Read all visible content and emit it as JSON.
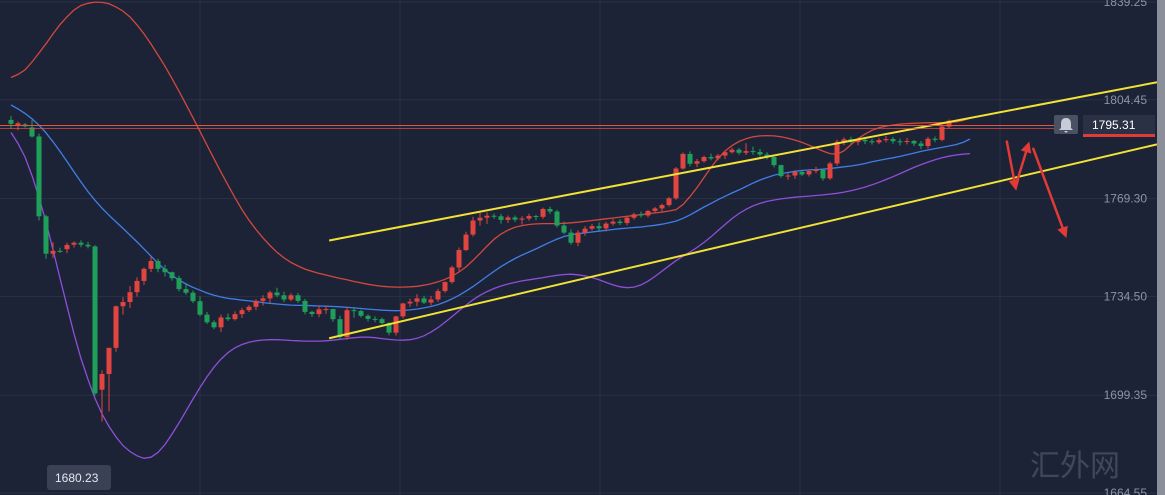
{
  "chart_data": {
    "type": "candlestick",
    "y_axis": {
      "ticks": [
        1839.25,
        1804.45,
        1769.3,
        1734.5,
        1699.35,
        1664.55
      ],
      "tick_labels": [
        "1839.25",
        "1804.45",
        "1769.30",
        "1734.50",
        "1699.35",
        "1664.55"
      ],
      "ylim": [
        1664.55,
        1839.25
      ],
      "position": "right"
    },
    "current_price": {
      "label": "1795.31",
      "value": 1795.31
    },
    "low_marker": {
      "label": "1680.23",
      "value": 1680.23
    },
    "grid": true,
    "colors": {
      "background": "#1d2336",
      "up": "#e0453f",
      "down": "#1fa05a",
      "middle_band": "#3f7ee8",
      "upper_band": "#d1483e",
      "lower_band": "#8d4fd8",
      "channel": "#f2e235",
      "price_line": "#e8533f",
      "arrows": "#e23a36"
    },
    "candles_ohlc": [
      [
        1797.3,
        1798.7,
        1794.2,
        1795.9
      ],
      [
        1795.5,
        1796.7,
        1793.6,
        1796.1
      ],
      [
        1795.7,
        1796.2,
        1794.6,
        1795.0
      ],
      [
        1794.6,
        1797.2,
        1791.0,
        1791.4
      ],
      [
        1791.4,
        1792.4,
        1761.5,
        1763.0
      ],
      [
        1763.0,
        1763.5,
        1747.9,
        1749.7
      ],
      [
        1749.7,
        1753.8,
        1748.1,
        1750.7
      ],
      [
        1750.7,
        1751.8,
        1750.0,
        1750.5
      ],
      [
        1751.3,
        1753.6,
        1749.9,
        1752.8
      ],
      [
        1752.9,
        1754.1,
        1751.9,
        1753.6
      ],
      [
        1753.6,
        1754.5,
        1752.0,
        1752.9
      ],
      [
        1752.9,
        1753.9,
        1751.6,
        1752.3
      ],
      [
        1752.3,
        1752.7,
        1699.3,
        1700.0
      ],
      [
        1701.3,
        1708.2,
        1690.0,
        1706.9
      ],
      [
        1706.9,
        1716.2,
        1693.6,
        1716.2
      ],
      [
        1716.2,
        1731.2,
        1714.8,
        1731.0
      ],
      [
        1731.0,
        1734.2,
        1728.0,
        1732.5
      ],
      [
        1732.5,
        1738.2,
        1730.4,
        1736.0
      ],
      [
        1736.0,
        1741.3,
        1734.4,
        1740.0
      ],
      [
        1740.0,
        1744.8,
        1738.6,
        1744.3
      ],
      [
        1744.3,
        1748.5,
        1743.2,
        1747.1
      ],
      [
        1747.1,
        1747.9,
        1743.1,
        1744.3
      ],
      [
        1744.3,
        1745.7,
        1741.6,
        1743.1
      ],
      [
        1743.1,
        1743.3,
        1740.1,
        1741.0
      ],
      [
        1741.0,
        1741.9,
        1736.3,
        1737.1
      ],
      [
        1737.1,
        1739.3,
        1735.1,
        1735.8
      ],
      [
        1735.8,
        1736.6,
        1732.1,
        1732.8
      ],
      [
        1732.8,
        1734.5,
        1727.4,
        1728.0
      ],
      [
        1728.0,
        1729.0,
        1724.7,
        1725.3
      ],
      [
        1725.3,
        1726.0,
        1722.8,
        1723.5
      ],
      [
        1723.5,
        1728.0,
        1721.8,
        1727.0
      ],
      [
        1727.0,
        1728.4,
        1725.8,
        1726.4
      ],
      [
        1726.4,
        1729.2,
        1725.9,
        1728.2
      ],
      [
        1728.2,
        1730.4,
        1726.8,
        1729.6
      ],
      [
        1729.6,
        1731.4,
        1728.9,
        1730.8
      ],
      [
        1730.8,
        1733.5,
        1729.6,
        1732.9
      ],
      [
        1732.9,
        1734.9,
        1731.2,
        1733.8
      ],
      [
        1733.8,
        1736.5,
        1732.1,
        1735.9
      ],
      [
        1735.9,
        1737.6,
        1734.2,
        1734.9
      ],
      [
        1734.9,
        1736.2,
        1732.4,
        1733.4
      ],
      [
        1733.4,
        1735.6,
        1732.8,
        1734.9
      ],
      [
        1734.9,
        1735.7,
        1732.2,
        1732.9
      ],
      [
        1732.9,
        1733.6,
        1728.1,
        1729.0
      ],
      [
        1729.0,
        1729.4,
        1727.2,
        1728.2
      ],
      [
        1728.2,
        1731.3,
        1727.1,
        1729.9
      ],
      [
        1729.9,
        1731.2,
        1728.3,
        1730.0
      ],
      [
        1730.0,
        1730.1,
        1725.5,
        1726.4
      ],
      [
        1726.4,
        1727.6,
        1719.4,
        1720.0
      ],
      [
        1720.0,
        1730.9,
        1719.1,
        1729.6
      ],
      [
        1729.6,
        1730.7,
        1726.9,
        1729.3
      ],
      [
        1729.3,
        1729.8,
        1727.0,
        1727.6
      ],
      [
        1727.6,
        1728.1,
        1725.6,
        1726.5
      ],
      [
        1726.5,
        1727.4,
        1725.3,
        1726.4
      ],
      [
        1726.4,
        1727.0,
        1724.4,
        1725.0
      ],
      [
        1725.0,
        1725.3,
        1720.7,
        1721.6
      ],
      [
        1721.6,
        1727.6,
        1720.6,
        1727.4
      ],
      [
        1727.4,
        1732.2,
        1726.7,
        1732.0
      ],
      [
        1732.0,
        1733.7,
        1730.8,
        1732.6
      ],
      [
        1732.6,
        1735.3,
        1731.0,
        1733.8
      ],
      [
        1733.8,
        1734.7,
        1731.8,
        1732.3
      ],
      [
        1732.3,
        1734.7,
        1731.3,
        1733.4
      ],
      [
        1733.4,
        1737.2,
        1732.5,
        1736.4
      ],
      [
        1736.4,
        1739.9,
        1735.8,
        1739.6
      ],
      [
        1739.6,
        1745.4,
        1739.0,
        1744.8
      ],
      [
        1744.8,
        1751.9,
        1743.5,
        1751.0
      ],
      [
        1751.0,
        1757.5,
        1750.6,
        1756.5
      ],
      [
        1756.5,
        1762.8,
        1755.8,
        1761.5
      ],
      [
        1761.5,
        1764.5,
        1759.7,
        1762.5
      ],
      [
        1762.5,
        1764.4,
        1760.3,
        1763.2
      ],
      [
        1763.2,
        1764.0,
        1762.1,
        1763.0
      ],
      [
        1763.0,
        1763.9,
        1760.4,
        1761.7
      ],
      [
        1761.7,
        1763.3,
        1760.6,
        1762.6
      ],
      [
        1762.6,
        1763.3,
        1761.0,
        1761.8
      ],
      [
        1761.8,
        1763.0,
        1760.1,
        1762.2
      ],
      [
        1762.2,
        1763.9,
        1761.4,
        1763.1
      ],
      [
        1763.1,
        1763.5,
        1761.6,
        1762.8
      ],
      [
        1762.8,
        1766.1,
        1762.1,
        1765.6
      ],
      [
        1765.6,
        1766.4,
        1763.8,
        1764.7
      ],
      [
        1764.7,
        1765.3,
        1759.0,
        1759.7
      ],
      [
        1759.7,
        1761.1,
        1756.6,
        1757.2
      ],
      [
        1757.2,
        1758.4,
        1752.9,
        1753.6
      ],
      [
        1753.6,
        1758.1,
        1752.4,
        1757.2
      ],
      [
        1757.2,
        1759.5,
        1756.1,
        1758.6
      ],
      [
        1758.6,
        1760.3,
        1757.9,
        1759.5
      ],
      [
        1759.5,
        1760.8,
        1757.9,
        1758.7
      ],
      [
        1758.7,
        1761.0,
        1757.6,
        1760.4
      ],
      [
        1760.4,
        1762.1,
        1759.7,
        1761.1
      ],
      [
        1761.1,
        1762.0,
        1759.9,
        1760.6
      ],
      [
        1760.6,
        1762.9,
        1759.8,
        1762.5
      ],
      [
        1762.5,
        1764.3,
        1761.8,
        1763.7
      ],
      [
        1763.7,
        1764.7,
        1762.5,
        1763.3
      ],
      [
        1763.3,
        1765.3,
        1762.6,
        1764.9
      ],
      [
        1764.9,
        1766.3,
        1764.0,
        1765.8
      ],
      [
        1765.8,
        1767.5,
        1764.6,
        1767.0
      ],
      [
        1767.0,
        1769.9,
        1766.4,
        1769.4
      ],
      [
        1769.4,
        1780.5,
        1768.9,
        1780.0
      ],
      [
        1780.0,
        1785.7,
        1779.6,
        1785.2
      ],
      [
        1785.2,
        1786.1,
        1780.8,
        1781.7
      ],
      [
        1781.7,
        1783.4,
        1780.5,
        1782.6
      ],
      [
        1782.6,
        1784.6,
        1782.1,
        1784.1
      ],
      [
        1784.1,
        1785.3,
        1782.9,
        1783.6
      ],
      [
        1783.6,
        1785.2,
        1782.9,
        1784.6
      ],
      [
        1784.6,
        1786.4,
        1783.4,
        1785.8
      ],
      [
        1785.8,
        1787.4,
        1785.3,
        1786.7
      ],
      [
        1786.7,
        1787.3,
        1784.9,
        1785.6
      ],
      [
        1785.6,
        1789.0,
        1784.8,
        1786.2
      ],
      [
        1786.2,
        1787.8,
        1785.0,
        1785.9
      ],
      [
        1785.9,
        1787.0,
        1784.2,
        1785.0
      ],
      [
        1785.0,
        1785.8,
        1783.2,
        1784.1
      ],
      [
        1784.1,
        1784.3,
        1780.4,
        1781.2
      ],
      [
        1781.2,
        1781.4,
        1776.7,
        1777.3
      ],
      [
        1777.3,
        1778.3,
        1776.0,
        1777.5
      ],
      [
        1777.5,
        1779.4,
        1776.3,
        1778.8
      ],
      [
        1778.8,
        1779.6,
        1777.3,
        1777.9
      ],
      [
        1777.9,
        1779.5,
        1777.1,
        1779.1
      ],
      [
        1779.1,
        1780.6,
        1778.3,
        1779.6
      ],
      [
        1779.6,
        1779.7,
        1775.7,
        1776.5
      ],
      [
        1776.5,
        1782.4,
        1775.9,
        1781.8
      ],
      [
        1781.8,
        1790.3,
        1781.0,
        1789.5
      ],
      [
        1789.5,
        1791.1,
        1788.3,
        1790.4
      ],
      [
        1790.4,
        1791.3,
        1788.8,
        1789.4
      ],
      [
        1789.4,
        1790.8,
        1788.3,
        1790.2
      ],
      [
        1790.2,
        1791.0,
        1788.7,
        1789.7
      ],
      [
        1789.7,
        1790.6,
        1788.5,
        1789.3
      ],
      [
        1789.3,
        1790.8,
        1788.7,
        1790.1
      ],
      [
        1790.1,
        1791.6,
        1789.3,
        1790.5
      ],
      [
        1790.5,
        1791.2,
        1788.8,
        1789.7
      ],
      [
        1789.7,
        1790.7,
        1788.2,
        1789.5
      ],
      [
        1789.5,
        1790.9,
        1788.6,
        1789.8
      ],
      [
        1789.8,
        1790.2,
        1788.0,
        1788.9
      ],
      [
        1788.9,
        1789.8,
        1786.9,
        1788.0
      ],
      [
        1788.0,
        1791.3,
        1787.1,
        1790.6
      ],
      [
        1790.6,
        1791.4,
        1789.4,
        1790.2
      ],
      [
        1790.2,
        1795.4,
        1789.7,
        1794.9
      ],
      [
        1794.9,
        1797.4,
        1794.3,
        1797.0
      ]
    ],
    "bollinger": {
      "middle": [
        1802.6,
        1801.2,
        1799.6,
        1797.7,
        1795.4,
        1792.7,
        1789.5,
        1786.1,
        1782.5,
        1778.8,
        1775.2,
        1771.8,
        1768.7,
        1765.9,
        1763.4,
        1761.0,
        1758.7,
        1756.3,
        1753.9,
        1751.4,
        1748.8,
        1746.3,
        1744.0,
        1742.0,
        1740.3,
        1738.9,
        1737.7,
        1736.7,
        1735.7,
        1734.9,
        1734.3,
        1733.8,
        1733.5,
        1733.2,
        1732.9,
        1732.6,
        1732.3,
        1732.0,
        1731.8,
        1731.6,
        1731.4,
        1731.3,
        1731.3,
        1731.2,
        1731.1,
        1731.0,
        1730.9,
        1730.8,
        1730.6,
        1730.4,
        1730.2,
        1730.0,
        1729.8,
        1729.6,
        1729.5,
        1729.4,
        1729.5,
        1729.7,
        1730.0,
        1730.4,
        1730.9,
        1731.6,
        1732.5,
        1733.6,
        1734.9,
        1736.4,
        1738.0,
        1739.8,
        1741.6,
        1743.4,
        1745.1,
        1746.6,
        1748.0,
        1749.2,
        1750.3,
        1751.4,
        1752.6,
        1753.8,
        1754.9,
        1755.8,
        1756.4,
        1756.8,
        1757.1,
        1757.4,
        1757.7,
        1758.0,
        1758.3,
        1758.6,
        1758.8,
        1759.0,
        1759.2,
        1759.5,
        1759.8,
        1760.2,
        1760.7,
        1761.3,
        1762.3,
        1763.5,
        1764.9,
        1766.3,
        1767.6,
        1768.9,
        1770.1,
        1771.3,
        1772.4,
        1773.6,
        1774.8,
        1775.9,
        1776.8,
        1777.6,
        1778.2,
        1778.6,
        1779.0,
        1779.3,
        1779.5,
        1779.6,
        1779.8,
        1780.0,
        1780.3,
        1780.6,
        1780.9,
        1781.3,
        1781.8,
        1782.4,
        1782.9,
        1783.4,
        1783.8,
        1784.3,
        1784.9,
        1785.5,
        1786.1,
        1786.6,
        1787.1,
        1787.5,
        1788.0,
        1788.5,
        1789.3,
        1790.5
      ],
      "upper": [
        1812.4,
        1813.5,
        1815.1,
        1817.9,
        1821.1,
        1824.4,
        1827.9,
        1831.2,
        1834.0,
        1836.4,
        1838.0,
        1838.8,
        1839.2,
        1839.1,
        1838.6,
        1837.5,
        1836.0,
        1833.9,
        1831.1,
        1827.9,
        1824.3,
        1820.4,
        1816.4,
        1812.0,
        1807.5,
        1802.8,
        1798.1,
        1793.2,
        1788.3,
        1783.5,
        1778.7,
        1774.1,
        1769.6,
        1765.4,
        1761.6,
        1758.3,
        1755.3,
        1752.6,
        1750.2,
        1748.2,
        1746.6,
        1745.3,
        1744.2,
        1743.4,
        1742.7,
        1742.1,
        1741.5,
        1740.9,
        1740.4,
        1739.8,
        1739.3,
        1738.8,
        1738.4,
        1738.1,
        1737.9,
        1737.8,
        1737.8,
        1737.9,
        1738.1,
        1738.5,
        1739.0,
        1739.7,
        1740.6,
        1741.7,
        1743.2,
        1745.0,
        1747.3,
        1749.8,
        1752.4,
        1754.8,
        1756.7,
        1758.1,
        1759.1,
        1759.7,
        1760.1,
        1760.3,
        1760.4,
        1760.4,
        1760.4,
        1760.5,
        1760.7,
        1760.9,
        1761.2,
        1761.5,
        1761.8,
        1762.1,
        1762.4,
        1762.7,
        1763.0,
        1763.3,
        1763.6,
        1763.9,
        1764.2,
        1764.5,
        1764.9,
        1765.4,
        1767.2,
        1770.0,
        1773.2,
        1776.8,
        1780.4,
        1783.6,
        1786.2,
        1788.2,
        1789.6,
        1790.6,
        1791.3,
        1791.6,
        1791.7,
        1791.6,
        1791.3,
        1790.8,
        1790.1,
        1789.3,
        1788.3,
        1787.3,
        1786.2,
        1785.3,
        1785.1,
        1786.3,
        1788.5,
        1790.6,
        1792.3,
        1793.6,
        1794.5,
        1795.1,
        1795.5,
        1795.8,
        1796.0,
        1796.1,
        1796.2,
        1796.3,
        1796.3,
        1796.3,
        1796.4,
        1796.6,
        1797.1,
        1797.9
      ],
      "lower": [
        1792.8,
        1788.9,
        1784.1,
        1777.5,
        1769.7,
        1761.0,
        1751.1,
        1741.0,
        1731.0,
        1721.2,
        1712.4,
        1705.0,
        1698.2,
        1692.7,
        1688.2,
        1684.5,
        1681.4,
        1679.3,
        1677.8,
        1676.9,
        1677.3,
        1679.0,
        1681.8,
        1685.5,
        1689.5,
        1693.7,
        1698.0,
        1702.1,
        1705.9,
        1709.3,
        1712.2,
        1714.5,
        1716.2,
        1717.4,
        1718.2,
        1718.7,
        1719.0,
        1719.1,
        1719.1,
        1719.0,
        1718.8,
        1718.7,
        1718.6,
        1718.6,
        1718.6,
        1718.7,
        1718.9,
        1719.2,
        1719.5,
        1719.8,
        1720.0,
        1720.0,
        1719.8,
        1719.5,
        1719.2,
        1719.0,
        1718.9,
        1719.1,
        1719.6,
        1720.5,
        1721.8,
        1723.4,
        1725.3,
        1727.3,
        1729.4,
        1731.4,
        1733.3,
        1734.9,
        1736.2,
        1737.3,
        1738.2,
        1738.9,
        1739.5,
        1740.0,
        1740.4,
        1740.8,
        1741.2,
        1741.6,
        1742.0,
        1742.3,
        1742.4,
        1742.2,
        1741.8,
        1741.2,
        1740.4,
        1739.5,
        1738.6,
        1737.9,
        1737.6,
        1737.8,
        1738.6,
        1739.9,
        1741.6,
        1743.5,
        1745.4,
        1747.2,
        1748.8,
        1750.3,
        1751.9,
        1753.7,
        1755.7,
        1757.9,
        1760.1,
        1762.2,
        1764.0,
        1765.5,
        1766.7,
        1767.6,
        1768.3,
        1768.8,
        1769.2,
        1769.5,
        1769.8,
        1770.0,
        1770.2,
        1770.4,
        1770.6,
        1770.9,
        1771.2,
        1771.6,
        1772.1,
        1772.7,
        1773.4,
        1774.2,
        1775.1,
        1776.1,
        1777.1,
        1778.2,
        1779.3,
        1780.4,
        1781.4,
        1782.3,
        1783.1,
        1783.8,
        1784.4,
        1784.8,
        1785.1,
        1785.3
      ]
    },
    "channel_lines": [
      {
        "name": "upper",
        "from": [
          0.2845,
          1754.4
        ],
        "to": [
          1.0,
          1810.7
        ]
      },
      {
        "name": "lower",
        "from": [
          0.2845,
          1719.6
        ],
        "to": [
          1.0,
          1788.6
        ]
      }
    ],
    "forecast_arrows": [
      [
        [
          0.8702,
          1789.6
        ],
        [
          0.8783,
          1772.1
        ]
      ],
      [
        [
          0.8792,
          1775.7
        ],
        [
          0.8896,
          1789.6
        ]
      ],
      [
        [
          0.8931,
          1787.0
        ],
        [
          0.9217,
          1755.3
        ]
      ]
    ]
  },
  "watermark": "汇外网"
}
